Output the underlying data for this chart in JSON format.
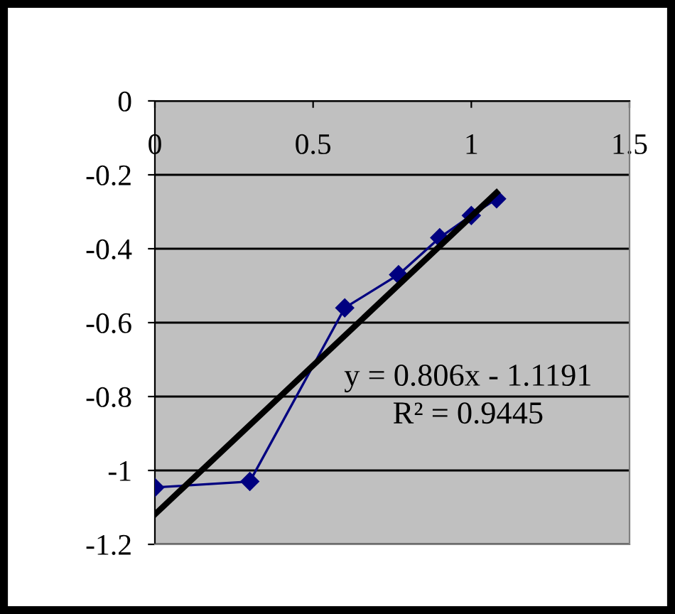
{
  "chart_data": {
    "type": "line",
    "x": [
      0,
      0.3,
      0.6,
      0.77,
      0.9,
      1.0,
      1.08
    ],
    "series": [
      {
        "color": "#000080",
        "marker": "diamond",
        "values": [
          -1.046,
          -1.03,
          -0.56,
          -0.47,
          -0.37,
          -0.31,
          -0.265
        ]
      },
      {
        "color": "#000000",
        "marker": "none",
        "x": [
          0,
          1.08
        ],
        "values": [
          -1.119,
          -0.248
        ]
      }
    ],
    "xlim": [
      0,
      1.5
    ],
    "xticks": [
      0,
      0.5,
      1,
      1.5
    ],
    "ylim": [
      -1.2,
      0
    ],
    "yticks": [
      -1.2,
      -1,
      -0.8,
      -0.6,
      -0.4,
      -0.2,
      0
    ],
    "grid": "y",
    "legend": false,
    "annotations": [
      "y = 0.806x - 1.1191",
      "R² = 0.9445"
    ]
  }
}
